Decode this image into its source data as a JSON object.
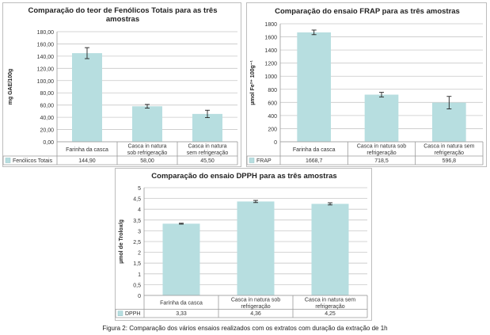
{
  "figure_caption": "Figura 2: Comparação dos vários ensaios realizados com os extratos com duração da extração de 1h",
  "chart_data": [
    {
      "type": "bar",
      "title": "Comparação do teor de Fenólicos Totais para as três amostras",
      "title_lines": [
        "Comparação do teor de Fenólicos Totais para as três",
        "amostras"
      ],
      "ylabel": "mg GAE/100g",
      "xlabel": "",
      "ylim": [
        0,
        180
      ],
      "yticks": [
        "0,00",
        "20,00",
        "40,00",
        "60,00",
        "80,00",
        "100,00",
        "120,00",
        "140,00",
        "160,00",
        "180,00"
      ],
      "grid": true,
      "categories": [
        "Farinha da casca",
        "Casca in natura sob refrigeração",
        "Casca in natura sem refrigeração"
      ],
      "category_lines": [
        [
          "Farinha da casca"
        ],
        [
          "Casca in natura",
          "sob refrigeração"
        ],
        [
          "Casca in natura",
          "sem refrigeração"
        ]
      ],
      "series": [
        {
          "name": "Fenólicos Totais",
          "values": [
            144.9,
            58.0,
            45.5
          ],
          "errors": [
            9,
            3,
            6
          ],
          "labels": [
            "144,90",
            "58,00",
            "45,50"
          ],
          "color": "#b7dee0"
        }
      ],
      "legend": "data-table"
    },
    {
      "type": "bar",
      "title": "Comparação do ensaio FRAP para as três amostras",
      "title_lines": [
        "Comparação do ensaio FRAP para as três amostras"
      ],
      "ylabel": "µmol Fe²⁺ 100g⁻¹",
      "xlabel": "",
      "ylim": [
        0,
        1800
      ],
      "yticks": [
        "0",
        "200",
        "400",
        "600",
        "800",
        "1000",
        "1200",
        "1400",
        "1600",
        "1800"
      ],
      "grid": true,
      "categories": [
        "Farinha da casca",
        "Casca in natura sob refrigeração",
        "Casca in natura sem refrigeração"
      ],
      "category_lines": [
        [
          "Farinha da casca"
        ],
        [
          "Casca in natura sob",
          "refrigeração"
        ],
        [
          "Casca in natura sem",
          "refrigeração"
        ]
      ],
      "series": [
        {
          "name": "FRAP",
          "values": [
            1668.7,
            718.5,
            596.8
          ],
          "errors": [
            35,
            35,
            95
          ],
          "labels": [
            "1668,7",
            "718,5",
            "596,8"
          ],
          "color": "#b7dee0"
        }
      ],
      "legend": "data-table"
    },
    {
      "type": "bar",
      "title": "Comparação do ensaio DPPH para as três amostras",
      "title_lines": [
        "Comparação do ensaio DPPH para as três amostras"
      ],
      "ylabel": "µmol de Trolox/g",
      "xlabel": "",
      "ylim": [
        0,
        5
      ],
      "yticks": [
        "0",
        "0,5",
        "1",
        "1,5",
        "2",
        "2,5",
        "3",
        "3,5",
        "4",
        "4,5",
        "5"
      ],
      "grid": true,
      "categories": [
        "Farinha da casca",
        "Casca in natura sob refrigeração",
        "Casca in natura sem refrigeração"
      ],
      "category_lines": [
        [
          "Farinha da casca"
        ],
        [
          "Casca in natura sob",
          "refrigeração"
        ],
        [
          "Casca in natura sem",
          "refrigeração"
        ]
      ],
      "series": [
        {
          "name": "DPPH",
          "values": [
            3.33,
            4.36,
            4.25
          ],
          "errors": [
            0.02,
            0.05,
            0.05
          ],
          "labels": [
            "3,33",
            "4,36",
            "4,25"
          ],
          "color": "#b7dee0"
        }
      ],
      "legend": "data-table"
    }
  ]
}
